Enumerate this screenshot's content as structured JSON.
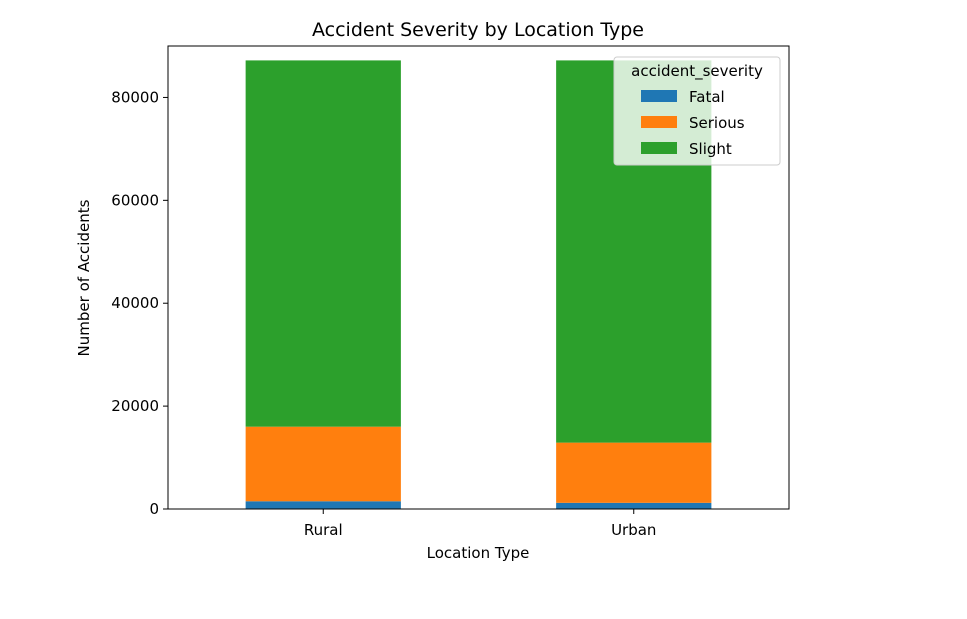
{
  "chart_data": {
    "type": "bar",
    "stacked": true,
    "title": "Accident Severity by Location Type",
    "xlabel": "Location Type",
    "ylabel": "Number of Accidents",
    "categories": [
      "Rural",
      "Urban"
    ],
    "series": [
      {
        "name": "Fatal",
        "color": "#1f77b4",
        "values": [
          1500,
          1200
        ]
      },
      {
        "name": "Serious",
        "color": "#ff7f0e",
        "values": [
          14500,
          11700
        ]
      },
      {
        "name": "Slight",
        "color": "#2ca02c",
        "values": [
          71200,
          74300
        ]
      }
    ],
    "yticks": [
      0,
      20000,
      40000,
      60000,
      80000
    ],
    "ylim": [
      0,
      90000
    ],
    "legend": {
      "title": "accident_severity",
      "position": "top-right"
    },
    "grid": false
  }
}
